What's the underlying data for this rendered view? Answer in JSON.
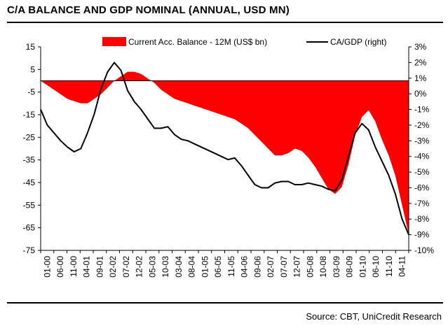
{
  "header": {
    "title": "C/A BALANCE AND GDP NOMINAL (ANNUAL, USD MN)",
    "source": "Source: CBT, UniCredit Research"
  },
  "colors": {
    "area": "#ff0000",
    "line": "#000000",
    "axis": "#000000"
  },
  "chart_data": {
    "type": "area",
    "title": "",
    "x_tick_labels": [
      "01-00",
      "06-00",
      "11-00",
      "04-01",
      "09-01",
      "02-02",
      "07-02",
      "12-02",
      "05-03",
      "10-03",
      "03-04",
      "08-04",
      "01-05",
      "06-05",
      "11-05",
      "04-06",
      "09-06",
      "02-07",
      "07-07",
      "12-07",
      "05-08",
      "10-08",
      "03-09",
      "08-09",
      "01-10",
      "06-10",
      "11-10",
      "04-11"
    ],
    "y_left": {
      "ylim": [
        -75,
        15
      ],
      "ticks": [
        15,
        5,
        -5,
        -15,
        -25,
        -35,
        -45,
        -55,
        -65,
        -75
      ]
    },
    "y_right": {
      "ylim": [
        -10,
        3
      ],
      "ticks": [
        "3%",
        "2%",
        "1%",
        "0%",
        "-1%",
        "-2%",
        "-3%",
        "-4%",
        "-5%",
        "-6%",
        "-7%",
        "-8%",
        "-9%",
        "-10%"
      ]
    },
    "legend_position": "top",
    "series": [
      {
        "name": "Current Acc. Balance - 12M (US$ bn)",
        "type": "area",
        "axis": "left",
        "values": [
          0,
          -2,
          -4,
          -6,
          -8,
          -9,
          -10,
          -10,
          -8,
          -6,
          -3,
          0,
          2,
          4,
          4,
          3,
          1,
          -1,
          -4,
          -6,
          -8,
          -9,
          -10,
          -11,
          -12,
          -13,
          -14,
          -15,
          -16,
          -17,
          -19,
          -21,
          -24,
          -27,
          -30,
          -33,
          -33,
          -32,
          -30,
          -31,
          -34,
          -38,
          -43,
          -48,
          -50,
          -47,
          -37,
          -24,
          -16,
          -13,
          -18,
          -26,
          -33,
          -42,
          -55,
          -68
        ]
      },
      {
        "name": "CA/GDP (right)",
        "type": "line",
        "axis": "right",
        "values": [
          -1,
          -2,
          -2.5,
          -3,
          -3.4,
          -3.7,
          -3.5,
          -2.5,
          -1.3,
          0.3,
          1.4,
          2,
          1.5,
          0.2,
          -0.5,
          -1,
          -1.6,
          -2.2,
          -2.2,
          -2.1,
          -2.6,
          -2.9,
          -3,
          -3.2,
          -3.4,
          -3.6,
          -3.8,
          -4,
          -4.2,
          -4.1,
          -4.6,
          -5.2,
          -5.8,
          -6,
          -6,
          -5.7,
          -5.6,
          -5.6,
          -5.8,
          -5.8,
          -5.7,
          -5.8,
          -5.9,
          -6.1,
          -6.2,
          -5.5,
          -4,
          -2.5,
          -1.9,
          -2.3,
          -3.4,
          -4.3,
          -5.2,
          -6.4,
          -8,
          -9
        ]
      }
    ]
  }
}
